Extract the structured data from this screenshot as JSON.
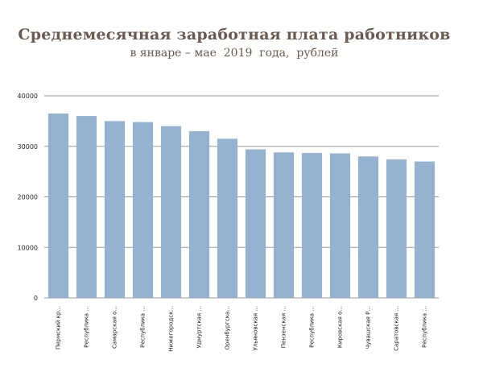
{
  "header": {
    "title": "Среднемесячная заработная плата работников",
    "subtitle": "в январе – мае  2019  года,  рублей"
  },
  "colors": {
    "bar": "#95b3d1",
    "gridline": "#9a9a9a",
    "title": "#6b5a4e"
  },
  "chart_data": {
    "type": "bar",
    "title": "Среднемесячная заработная плата работников",
    "subtitle": "в январе – мае  2019  года,  рублей",
    "xlabel": "",
    "ylabel": "",
    "ylim": [
      0,
      40000
    ],
    "yticks": [
      0,
      10000,
      20000,
      30000,
      40000
    ],
    "ytick_labels": [
      "0",
      "10000",
      "20000",
      "30000",
      "40000"
    ],
    "grid": true,
    "legend": "none",
    "categories": [
      "Пермский кр...",
      "Республика ...",
      "Самарская о...",
      "Республика ...",
      "Нижегородск...",
      "Удмуртская ...",
      "Оренбургска...",
      "Ульяновская ...",
      "Пензенская ...",
      "Республика ...",
      "Кировская о...",
      "Чувашская Р...",
      "Саратовская ...",
      "Республика ..."
    ],
    "values": [
      36500,
      36000,
      35000,
      34800,
      34000,
      33000,
      31500,
      29400,
      28800,
      28700,
      28600,
      28000,
      27400,
      27000
    ]
  }
}
